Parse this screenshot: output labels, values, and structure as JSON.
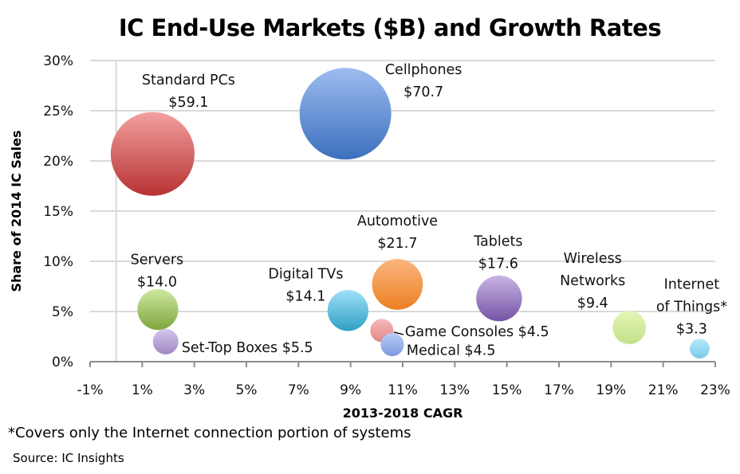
{
  "chart_data": {
    "type": "bubble",
    "title": "IC End-Use Markets ($B) and Growth Rates",
    "xlabel": "2013-2018 CAGR",
    "ylabel": "Share of 2014 IC Sales",
    "xlim": [
      -1,
      23
    ],
    "ylim": [
      0,
      30
    ],
    "x_ticks": [
      "-1%",
      "1%",
      "3%",
      "5%",
      "7%",
      "9%",
      "11%",
      "13%",
      "15%",
      "17%",
      "19%",
      "21%",
      "23%"
    ],
    "y_ticks": [
      "0%",
      "5%",
      "10%",
      "15%",
      "20%",
      "25%",
      "30%"
    ],
    "grid": "horizontal",
    "size_unit": "$B",
    "points": [
      {
        "name": "Standard PCs",
        "label_lines": [
          "Standard PCs",
          "$59.1"
        ],
        "x": 1.4,
        "y": 20.7,
        "size": 59.1,
        "color_top": "#f2a0a0",
        "color_bottom": "#b83232"
      },
      {
        "name": "Cellphones",
        "label_lines": [
          "Cellphones",
          "$70.7"
        ],
        "x": 8.8,
        "y": 24.7,
        "size": 70.7,
        "color_top": "#9dbdf0",
        "color_bottom": "#3b6fbd"
      },
      {
        "name": "Servers",
        "label_lines": [
          "Servers",
          "$14.0"
        ],
        "x": 1.6,
        "y": 5.2,
        "size": 14.0,
        "color_top": "#cfe8a0",
        "color_bottom": "#7ea63e"
      },
      {
        "name": "Set-Top Boxes",
        "label_lines": [
          "Set-Top Boxes $5.5"
        ],
        "x": 1.9,
        "y": 2.0,
        "size": 5.5,
        "color_top": "#d6c6ec",
        "color_bottom": "#9e88c4"
      },
      {
        "name": "Digital TVs",
        "label_lines": [
          "Digital TVs",
          "$14.1"
        ],
        "x": 8.9,
        "y": 5.1,
        "size": 14.1,
        "color_top": "#a0e0f8",
        "color_bottom": "#2ea0c4"
      },
      {
        "name": "Automotive",
        "label_lines": [
          "Automotive",
          "$21.7"
        ],
        "x": 10.8,
        "y": 7.7,
        "size": 21.7,
        "color_top": "#fbb680",
        "color_bottom": "#ec7f22"
      },
      {
        "name": "Tablets",
        "label_lines": [
          "Tablets",
          "$17.6"
        ],
        "x": 14.7,
        "y": 6.3,
        "size": 17.6,
        "color_top": "#c8b4e4",
        "color_bottom": "#7454a4"
      },
      {
        "name": "Game Consoles",
        "label_lines": [
          "Game Consoles $4.5"
        ],
        "x": 10.2,
        "y": 3.1,
        "size": 4.5,
        "color_top": "#f8b8b8",
        "color_bottom": "#e08888"
      },
      {
        "name": "Medical",
        "label_lines": [
          "Medical $4.5"
        ],
        "x": 10.6,
        "y": 1.7,
        "size": 4.5,
        "color_top": "#b8ccf4",
        "color_bottom": "#7c9ade"
      },
      {
        "name": "Wireless Networks",
        "label_lines": [
          "Wireless",
          "Networks",
          "$9.4"
        ],
        "x": 19.7,
        "y": 3.4,
        "size": 9.4,
        "color_top": "#e4f6b4",
        "color_bottom": "#c4e08c"
      },
      {
        "name": "Internet of Things",
        "label_lines": [
          "Internet",
          "of Things*",
          "$3.3"
        ],
        "x": 22.4,
        "y": 1.3,
        "size": 3.3,
        "color_top": "#b8ecfc",
        "color_bottom": "#78c8e8"
      }
    ],
    "footnote": "*Covers only the Internet connection portion of systems",
    "source": "Source: IC Insights"
  }
}
